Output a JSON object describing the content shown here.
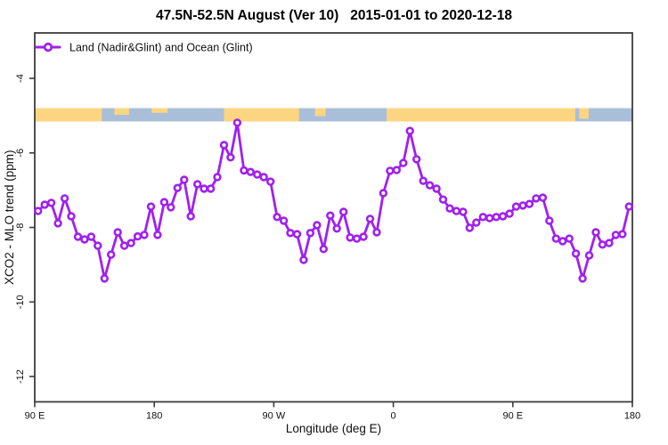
{
  "title": "47.5N-52.5N August (Ver 10)   2015-01-01 to 2020-12-18",
  "legend": {
    "label": "Land (Nadir&Glint) and Ocean (Glint)"
  },
  "colors": {
    "series": "#a020f0",
    "marker_fill": "#ffffff",
    "axis": "#3c3c3c",
    "land": "#fcd581",
    "ocean": "#a9bfd9"
  },
  "chart_data": {
    "type": "line",
    "title": "47.5N-52.5N August (Ver 10)   2015-01-01 to 2020-12-18",
    "xlabel": "Longitude (deg E)",
    "ylabel": "XCO2 - MLO trend (ppm)",
    "xlim": [
      90,
      540
    ],
    "ylim": [
      -12.68,
      -2.78
    ],
    "grid": false,
    "legend_position": "top-left",
    "x_ticks": [
      {
        "lon": 90,
        "label": "90 E"
      },
      {
        "lon": 180,
        "label": "180"
      },
      {
        "lon": 270,
        "label": "90 W"
      },
      {
        "lon": 360,
        "label": "0"
      },
      {
        "lon": 450,
        "label": "90 E"
      },
      {
        "lon": 540,
        "label": "180"
      }
    ],
    "y_ticks": [
      {
        "value": -4,
        "label": "-4"
      },
      {
        "value": -6,
        "label": "-6"
      },
      {
        "value": -8,
        "label": "-8"
      },
      {
        "value": -10,
        "label": "-10"
      },
      {
        "value": -12,
        "label": "-12"
      }
    ],
    "series": [
      {
        "name": "Land (Nadir&Glint) and Ocean (Glint)",
        "color": "#a020f0",
        "marker": "open-circle",
        "x": [
          92.5,
          97.5,
          102.5,
          107.5,
          112.5,
          117.5,
          122.5,
          127.5,
          132.5,
          137.5,
          142.5,
          147.5,
          152.5,
          157.5,
          162.5,
          167.5,
          172.5,
          177.5,
          182.5,
          187.5,
          192.5,
          197.5,
          202.5,
          207.5,
          212.5,
          217.5,
          222.5,
          227.5,
          232.5,
          237.5,
          242.5,
          247.5,
          252.5,
          257.5,
          262.5,
          267.5,
          272.5,
          277.5,
          282.5,
          287.5,
          292.5,
          297.5,
          302.5,
          307.5,
          312.5,
          317.5,
          322.5,
          327.5,
          332.5,
          337.5,
          342.5,
          347.5,
          352.5,
          357.5,
          362.5,
          367.5,
          372.5,
          377.5,
          382.5,
          387.5,
          392.5,
          397.5,
          402.5,
          407.5,
          412.5,
          417.5,
          422.5,
          427.5,
          432.5,
          437.5,
          442.5,
          447.5,
          452.5,
          457.5,
          462.5,
          467.5,
          472.5,
          477.5,
          482.5,
          487.5,
          492.5,
          497.5,
          502.5,
          507.5,
          512.5,
          517.5,
          522.5,
          527.5,
          532.5,
          537.5
        ],
        "values": [
          -7.56,
          -7.39,
          -7.34,
          -7.89,
          -7.22,
          -7.7,
          -8.25,
          -8.32,
          -8.25,
          -8.49,
          -9.37,
          -8.73,
          -8.13,
          -8.49,
          -8.42,
          -8.24,
          -8.2,
          -7.44,
          -8.2,
          -7.32,
          -7.46,
          -6.94,
          -6.72,
          -7.7,
          -6.84,
          -6.96,
          -6.96,
          -6.65,
          -5.79,
          -6.12,
          -5.19,
          -6.47,
          -6.51,
          -6.58,
          -6.65,
          -6.77,
          -7.72,
          -7.82,
          -8.15,
          -8.18,
          -8.87,
          -8.15,
          -7.94,
          -8.58,
          -7.68,
          -8.03,
          -7.58,
          -8.27,
          -8.3,
          -8.25,
          -7.77,
          -8.13,
          -7.08,
          -6.48,
          -6.46,
          -6.27,
          -5.41,
          -6.17,
          -6.75,
          -6.87,
          -6.96,
          -7.25,
          -7.49,
          -7.56,
          -7.58,
          -8.01,
          -7.87,
          -7.72,
          -7.75,
          -7.72,
          -7.7,
          -7.63,
          -7.44,
          -7.41,
          -7.37,
          -7.22,
          -7.2,
          -7.82,
          -8.3,
          -8.37,
          -8.3,
          -8.7,
          -9.37,
          -8.75,
          -8.13,
          -8.46,
          -8.42,
          -8.2,
          -8.18,
          -7.44
        ]
      }
    ],
    "map_strip": {
      "note": "horizontal land/ocean band across the plot near y=-5",
      "ocean_color": "#a9bfd9",
      "land_color": "#fcd581",
      "land_segments": [
        {
          "from": 90,
          "to": 140.5,
          "h": 1
        },
        {
          "from": 150,
          "to": 161,
          "h": 0.5
        },
        {
          "from": 178,
          "to": 190,
          "h": 0.35
        },
        {
          "from": 232.5,
          "to": 289,
          "h": 1
        },
        {
          "from": 301,
          "to": 309,
          "h": 0.6
        },
        {
          "from": 355,
          "to": 497,
          "h": 1
        },
        {
          "from": 500,
          "to": 507,
          "h": 0.8
        }
      ]
    }
  }
}
